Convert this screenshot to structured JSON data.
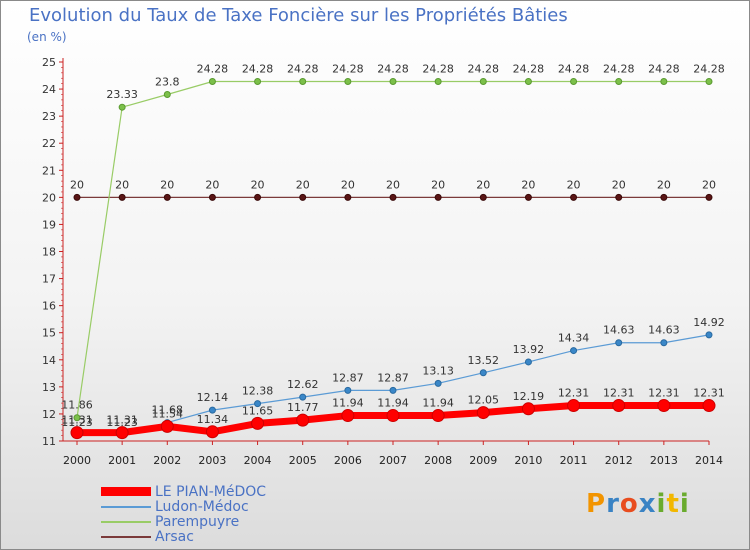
{
  "title": "Evolution du Taux de Taxe Foncière sur les Propriétés Bâties",
  "unit_label": "(en %)",
  "logo": {
    "letters": [
      "P",
      "r",
      "o",
      "x",
      "i",
      "t",
      "i"
    ],
    "colors": [
      "#f29400",
      "#3a83c4",
      "#e84c1e",
      "#3a83c4",
      "#6aab2e",
      "#f2b700",
      "#6aab2e"
    ]
  },
  "chart_data": {
    "type": "line",
    "x": [
      "2000",
      "2001",
      "2002",
      "2003",
      "2004",
      "2005",
      "2006",
      "2007",
      "2008",
      "2009",
      "2010",
      "2011",
      "2012",
      "2013",
      "2014"
    ],
    "ylim": [
      11,
      25
    ],
    "yticks": [
      11,
      12,
      13,
      14,
      15,
      16,
      17,
      18,
      19,
      20,
      21,
      22,
      23,
      24,
      25
    ],
    "grid": false,
    "legend_position": "bottom-left",
    "series": [
      {
        "name": "LE PIAN-MéDOC",
        "color": "#ff0000",
        "values": [
          11.31,
          11.31,
          11.54,
          11.34,
          11.65,
          11.77,
          11.94,
          11.94,
          11.94,
          12.05,
          12.19,
          12.31,
          12.31,
          12.31,
          12.31
        ],
        "labels": [
          "11.31",
          "11.31",
          "11.54",
          "11.34",
          "11.65",
          "11.77",
          "11.94",
          "11.94",
          "11.94",
          "12.05",
          "12.19",
          "12.31",
          "12.31",
          "12.31",
          "12.31"
        ]
      },
      {
        "name": "Ludon-Médoc",
        "color": "#5b9bd5",
        "values": [
          11.23,
          11.23,
          11.68,
          12.14,
          12.38,
          12.62,
          12.87,
          12.87,
          13.13,
          13.52,
          13.92,
          14.34,
          14.63,
          14.63,
          14.92
        ],
        "labels": [
          "11.23",
          "11.23",
          "11.68",
          "12.14",
          "12.38",
          "12.62",
          "12.87",
          "12.87",
          "13.13",
          "13.52",
          "13.92",
          "14.34",
          "14.63",
          "14.63",
          "14.92"
        ]
      },
      {
        "name": "Parempuyre",
        "color": "#99cc66",
        "values": [
          11.86,
          23.33,
          23.8,
          24.28,
          24.28,
          24.28,
          24.28,
          24.28,
          24.28,
          24.28,
          24.28,
          24.28,
          24.28,
          24.28,
          24.28
        ],
        "labels": [
          "11.86",
          "23.33",
          "23.8",
          "24.28",
          "24.28",
          "24.28",
          "24.28",
          "24.28",
          "24.28",
          "24.28",
          "24.28",
          "24.28",
          "24.28",
          "24.28",
          "24.28"
        ]
      },
      {
        "name": "Arsac",
        "color": "#7b3a3a",
        "values": [
          20,
          20,
          20,
          20,
          20,
          20,
          20,
          20,
          20,
          20,
          20,
          20,
          20,
          20,
          20
        ],
        "labels": [
          "20",
          "20",
          "20",
          "20",
          "20",
          "20",
          "20",
          "20",
          "20",
          "20",
          "20",
          "20",
          "20",
          "20",
          "20"
        ]
      }
    ]
  }
}
